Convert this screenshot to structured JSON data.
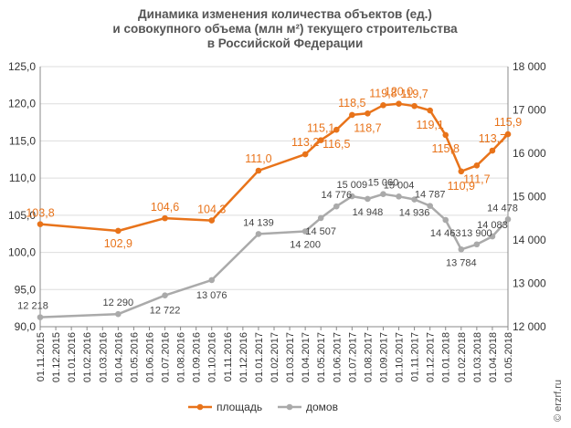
{
  "chart_data": {
    "type": "line",
    "title_lines": [
      "Динамика изменения количества объектов (ед.)",
      "и совокупного объема (млн м²) текущего строительства",
      "в Российской Федерации"
    ],
    "x_tick_labels": [
      "01.11.2015",
      "01.12.2015",
      "01.01.2016",
      "01.02.2016",
      "01.03.2016",
      "01.04.2016",
      "01.05.2016",
      "01.06.2016",
      "01.07.2016",
      "01.08.2016",
      "01.09.2016",
      "01.10.2016",
      "01.11.2016",
      "01.12.2016",
      "01.01.2017",
      "01.02.2017",
      "01.03.2017",
      "01.04.2017",
      "01.05.2017",
      "01.06.2017",
      "01.07.2017",
      "01.08.2017",
      "01.09.2017",
      "01.10.2017",
      "01.11.2017",
      "01.12.2017",
      "01.01.2018",
      "01.02.2018",
      "01.03.2018",
      "01.04.2018",
      "01.05.2018"
    ],
    "y_left": {
      "min": 90,
      "max": 125,
      "ticks": [
        "90,0",
        "95,0",
        "100,0",
        "105,0",
        "110,0",
        "115,0",
        "120,0",
        "125,0"
      ]
    },
    "y_right": {
      "min": 12000,
      "max": 18000,
      "ticks": [
        "12 000",
        "13 000",
        "14 000",
        "15 000",
        "16 000",
        "17 000",
        "18 000"
      ]
    },
    "series": [
      {
        "name": "площадь",
        "axis": "left",
        "color": "#e8731a",
        "x": [
          "01.11.2015",
          "01.04.2016",
          "01.07.2016",
          "01.10.2016",
          "01.01.2017",
          "01.04.2017",
          "01.05.2017",
          "01.06.2017",
          "01.07.2017",
          "01.08.2017",
          "01.09.2017",
          "01.10.2017",
          "01.11.2017",
          "01.12.2017",
          "01.01.2018",
          "01.02.2018",
          "01.03.2018",
          "01.04.2018",
          "01.05.2018"
        ],
        "values": [
          103.8,
          102.9,
          104.6,
          104.3,
          111.0,
          113.2,
          115.1,
          116.5,
          118.5,
          118.7,
          119.8,
          120.0,
          119.7,
          119.1,
          115.8,
          110.9,
          111.7,
          113.7,
          115.9
        ],
        "labels": [
          "103,8",
          "102,9",
          "104,6",
          "104,3",
          "111,0",
          "113,2",
          "115,1",
          "116,5",
          "118,5",
          "118,7",
          "119,8",
          "120,0",
          "119,7",
          "119,1",
          "115,8",
          "110,9",
          "111,7",
          "113,7",
          "115,9"
        ]
      },
      {
        "name": "домов",
        "axis": "right",
        "color": "#aaaaaa",
        "x": [
          "01.11.2015",
          "01.04.2016",
          "01.07.2016",
          "01.10.2016",
          "01.01.2017",
          "01.04.2017",
          "01.05.2017",
          "01.06.2017",
          "01.07.2017",
          "01.08.2017",
          "01.09.2017",
          "01.10.2017",
          "01.11.2017",
          "01.12.2017",
          "01.01.2018",
          "01.02.2018",
          "01.03.2018",
          "01.04.2018",
          "01.05.2018"
        ],
        "values": [
          12218,
          12290,
          12722,
          13076,
          14139,
          14200,
          14507,
          14776,
          15009,
          14948,
          15060,
          15004,
          14936,
          14787,
          14463,
          13784,
          13900,
          14083,
          14478
        ],
        "labels": [
          "12 218",
          "12 290",
          "12 722",
          "13 076",
          "14 139",
          "14 200",
          "14 507",
          "14 776",
          "15 009",
          "14 948",
          "15 060",
          "15 004",
          "14 936",
          "14 787",
          "14 463",
          "13 784",
          "13 900",
          "14 083",
          "14 478"
        ]
      }
    ],
    "legend": {
      "position": "bottom",
      "items": [
        "площадь",
        "домов"
      ]
    },
    "grid": true
  },
  "watermark": "© erzrf.ru"
}
